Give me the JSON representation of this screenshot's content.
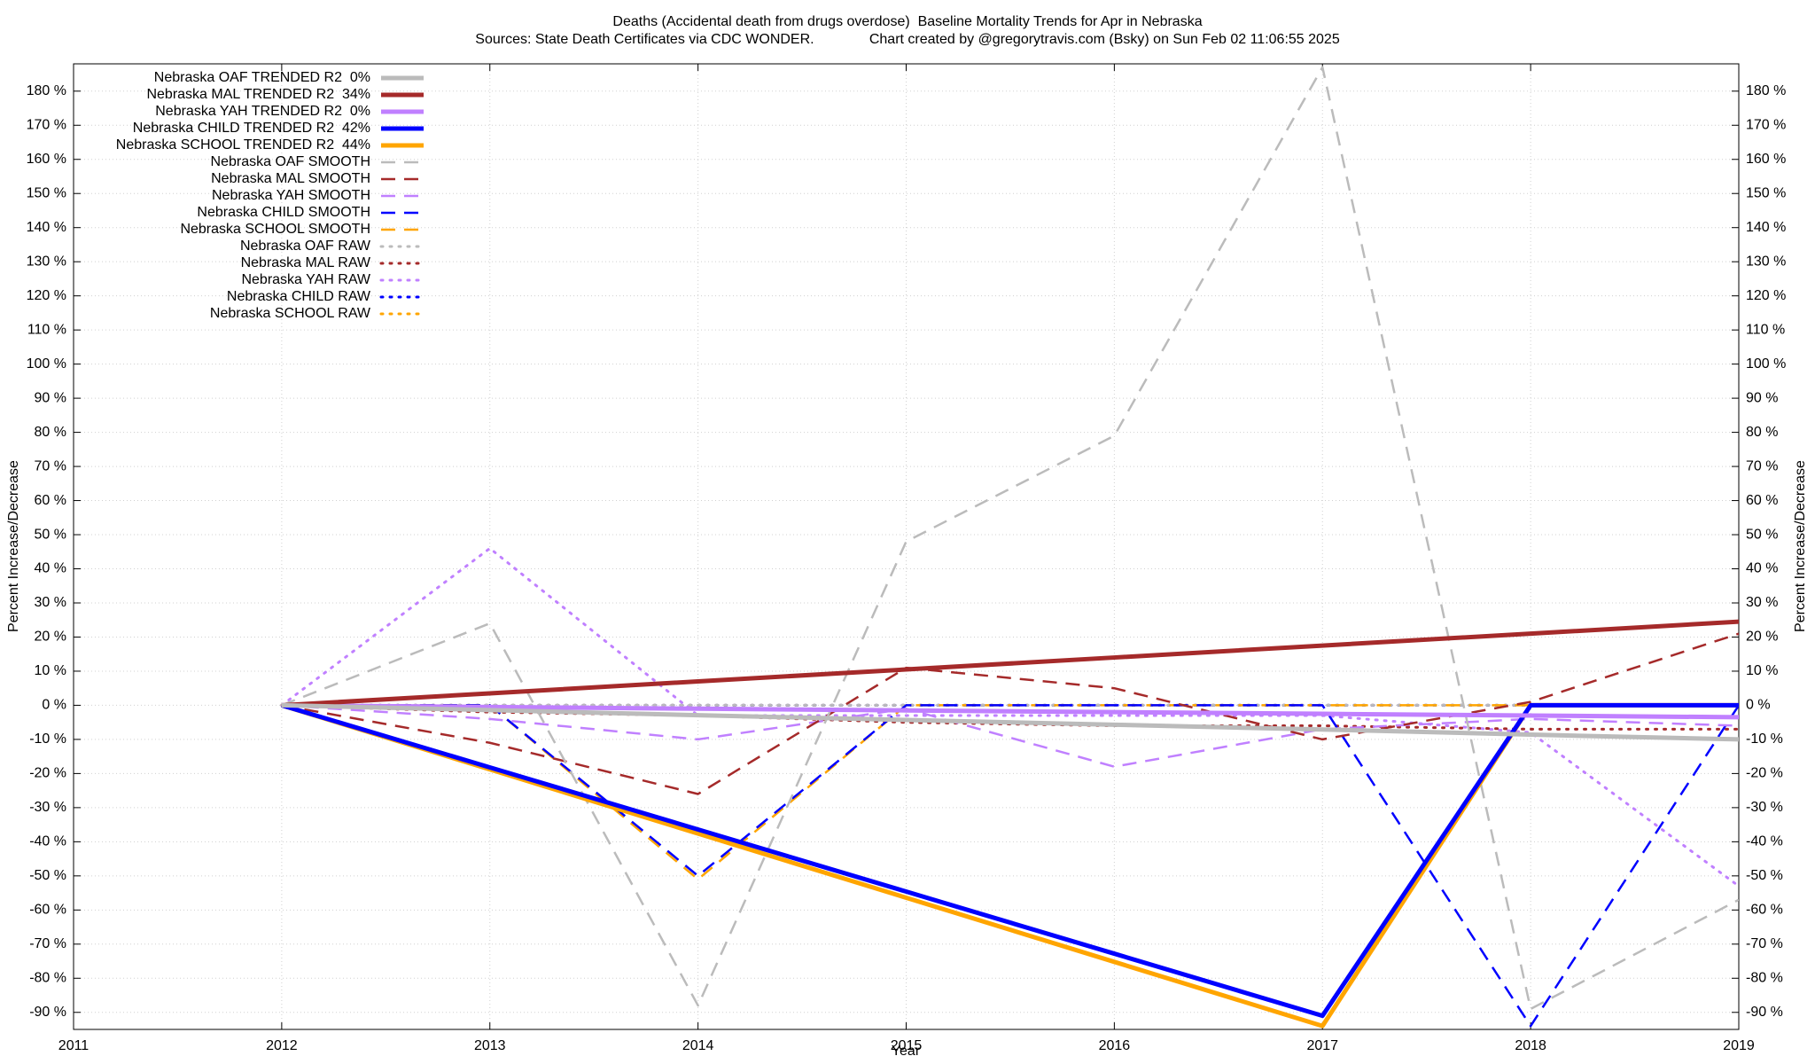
{
  "chart_data": {
    "type": "line",
    "title": "Deaths (Accidental death from drugs overdose)  Baseline Mortality Trends for Apr in Nebraska",
    "subtitle": "Sources: State Death Certificates via CDC WONDER.              Chart created by @gregorytravis.com (Bsky) on Sun Feb 02 11:06:55 2025",
    "x_label": "Year",
    "y_label": "Percent Increase/Decrease",
    "x": [
      2012,
      2013,
      2014,
      2015,
      2016,
      2017,
      2018,
      2019
    ],
    "xlim": [
      2011,
      2019
    ],
    "xticks": [
      2011,
      2012,
      2013,
      2014,
      2015,
      2016,
      2017,
      2018,
      2019
    ],
    "ylim": [
      -95,
      188
    ],
    "yticks": [
      {
        "value": -90,
        "label": "-90 %"
      },
      {
        "value": -80,
        "label": "-80 %"
      },
      {
        "value": -70,
        "label": "-70 %"
      },
      {
        "value": -60,
        "label": "-60 %"
      },
      {
        "value": -50,
        "label": "-50 %"
      },
      {
        "value": -40,
        "label": "-40 %"
      },
      {
        "value": -30,
        "label": "-30 %"
      },
      {
        "value": -20,
        "label": "-20 %"
      },
      {
        "value": -10,
        "label": "-10 %"
      },
      {
        "value": 0,
        "label": "0 %"
      },
      {
        "value": 10,
        "label": "10 %"
      },
      {
        "value": 20,
        "label": "20 %"
      },
      {
        "value": 30,
        "label": "30 %"
      },
      {
        "value": 40,
        "label": "40 %"
      },
      {
        "value": 50,
        "label": "50 %"
      },
      {
        "value": 60,
        "label": "60 %"
      },
      {
        "value": 70,
        "label": "70 %"
      },
      {
        "value": 80,
        "label": "80 %"
      },
      {
        "value": 90,
        "label": "90 %"
      },
      {
        "value": 100,
        "label": "100 %"
      },
      {
        "value": 110,
        "label": "110 %"
      },
      {
        "value": 120,
        "label": "120 %"
      },
      {
        "value": 130,
        "label": "130 %"
      },
      {
        "value": 140,
        "label": "140 %"
      },
      {
        "value": 150,
        "label": "150 %"
      },
      {
        "value": 160,
        "label": "160 %"
      },
      {
        "value": 170,
        "label": "170 %"
      },
      {
        "value": 180,
        "label": "180 %"
      }
    ],
    "grid": true,
    "legend": "top-left",
    "series": [
      {
        "name": "Nebraska OAF TRENDED R2  0%",
        "color": "#bbbbbb",
        "style": "solid",
        "values": [
          0,
          -1.4,
          -2.9,
          -4.3,
          -5.7,
          -7.1,
          -8.6,
          -10
        ]
      },
      {
        "name": "Nebraska MAL TRENDED R2  34%",
        "color": "#a52a2a",
        "style": "solid",
        "values": [
          0,
          3.5,
          7,
          10.5,
          14,
          17.5,
          21,
          24.5
        ]
      },
      {
        "name": "Nebraska YAH TRENDED R2  0%",
        "color": "#c080ff",
        "style": "solid",
        "values": [
          0,
          -0.5,
          -1,
          -1.5,
          -2,
          -2.5,
          -3,
          -3.5
        ]
      },
      {
        "name": "Nebraska CHILD TRENDED R2  42%",
        "color": "#0000ff",
        "style": "solid",
        "values": [
          0,
          -18.2,
          -36.4,
          -54.6,
          -72.8,
          -91,
          0,
          0
        ]
      },
      {
        "name": "Nebraska SCHOOL TRENDED R2  44%",
        "color": "#ffa500",
        "style": "solid",
        "values": [
          0,
          -18.8,
          -37.6,
          -56.4,
          -75.2,
          -94,
          0,
          0
        ]
      },
      {
        "name": "Nebraska OAF SMOOTH",
        "color": "#bbbbbb",
        "style": "dashed",
        "values": [
          0,
          24,
          -88,
          48,
          79,
          187,
          -89,
          -57
        ]
      },
      {
        "name": "Nebraska MAL SMOOTH",
        "color": "#a52a2a",
        "style": "dashed",
        "values": [
          0,
          -11,
          -26,
          11,
          5,
          -10,
          1,
          21
        ]
      },
      {
        "name": "Nebraska YAH SMOOTH",
        "color": "#c080ff",
        "style": "dashed",
        "values": [
          0,
          -4,
          -10,
          -1,
          -18,
          -7,
          -4,
          -6
        ]
      },
      {
        "name": "Nebraska CHILD SMOOTH",
        "color": "#0000ff",
        "style": "dashed",
        "values": [
          0,
          0,
          -50,
          0,
          0,
          0,
          -94,
          0
        ]
      },
      {
        "name": "Nebraska SCHOOL SMOOTH",
        "color": "#ffa500",
        "style": "dashed",
        "values": [
          0,
          0,
          -51,
          0,
          0,
          0,
          0,
          0
        ]
      },
      {
        "name": "Nebraska OAF RAW",
        "color": "#bbbbbb",
        "style": "dotted",
        "values": [
          0,
          0,
          0,
          0,
          0,
          0,
          0,
          0
        ]
      },
      {
        "name": "Nebraska MAL RAW",
        "color": "#a52a2a",
        "style": "dotted",
        "values": [
          0,
          -2,
          -3,
          -5,
          -6,
          -6,
          -7,
          -7
        ]
      },
      {
        "name": "Nebraska YAH RAW",
        "color": "#c080ff",
        "style": "dotted",
        "values": [
          0,
          46,
          -3,
          -3,
          -3,
          -3,
          -8,
          -53
        ]
      },
      {
        "name": "Nebraska CHILD RAW",
        "color": "#0000ff",
        "style": "dotted",
        "values": [
          0,
          0,
          0,
          0,
          0,
          0,
          0,
          0
        ]
      },
      {
        "name": "Nebraska SCHOOL RAW",
        "color": "#ffa500",
        "style": "dotted",
        "values": [
          0,
          0,
          0,
          0,
          0,
          0,
          0,
          0
        ]
      }
    ]
  }
}
